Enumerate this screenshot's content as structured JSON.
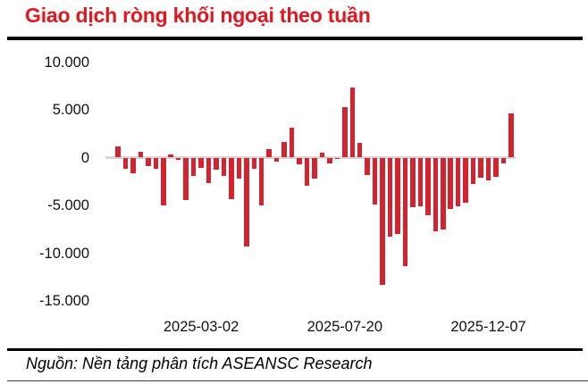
{
  "header": {
    "title": "Giao dịch ròng khối ngoại theo tuần"
  },
  "footer": {
    "source": "Nguồn: Nền tảng phân tích ASEANSC Research"
  },
  "colors": {
    "title": "#e2161f",
    "bar": "#d2232f",
    "zero_line": "#d8d4d4",
    "rule": "#000000"
  },
  "chart_data": {
    "type": "bar",
    "title": "Giao dịch ròng khối ngoại theo tuần",
    "xlabel": "",
    "ylabel": "",
    "ylim": [
      -15500,
      10500
    ],
    "grid": false,
    "legend": false,
    "bar_color": "#d2232f",
    "y_tick_values": [
      10000,
      5000,
      0,
      -5000,
      -10000,
      -15000
    ],
    "y_tick_labels": [
      "10.000",
      "5.000",
      "0",
      "-5.000",
      "-10.000",
      "-15.000"
    ],
    "x_tick_labels": [
      "2025-03-02",
      "2025-07-20",
      "2025-12-07"
    ],
    "x_tick_indices": [
      11,
      30,
      49
    ],
    "values": [
      1200,
      -1200,
      -1600,
      600,
      -900,
      -1200,
      -5000,
      350,
      -200,
      -4400,
      -1900,
      -1100,
      -2700,
      -1300,
      -1900,
      -4300,
      -2200,
      -9300,
      -1200,
      -5000,
      850,
      -450,
      1600,
      3100,
      -700,
      -2900,
      -2200,
      500,
      -600,
      -100,
      5300,
      7300,
      1500,
      -1800,
      -4900,
      -13300,
      -8300,
      -8000,
      -11400,
      -5200,
      -5100,
      -6000,
      -7700,
      -7500,
      -5400,
      -5100,
      -4700,
      -2800,
      -2100,
      -2400,
      -2000,
      -600,
      4600
    ]
  }
}
